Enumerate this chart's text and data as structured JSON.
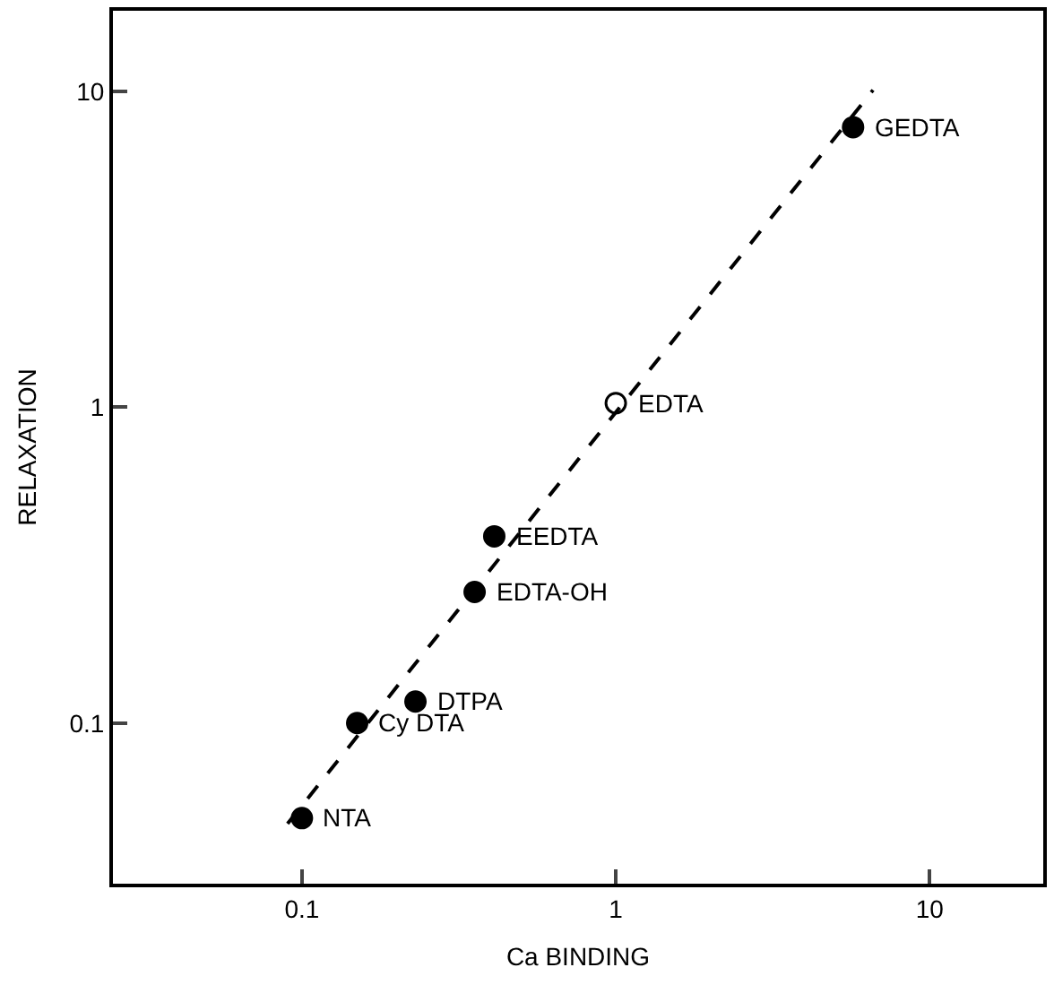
{
  "chart_data": {
    "type": "scatter",
    "xlabel": "Ca BINDING",
    "ylabel": "RELAXATION",
    "log": "xy",
    "marker": "circle",
    "xlim": [
      0.025,
      23
    ],
    "ylim": [
      0.031,
      18
    ],
    "xticks": [
      0.1,
      1,
      10
    ],
    "yticks": [
      0.1,
      1,
      10
    ],
    "series": [
      {
        "color": "#000000",
        "x": [
          0.1,
          0.15,
          0.23,
          0.355,
          0.41,
          5.7
        ],
        "values": [
          0.05,
          0.1,
          0.117,
          0.26,
          0.39,
          7.7
        ]
      },
      {
        "color": "#000000",
        "colors": [
          "#ffffff"
        ],
        "x": [
          1.0
        ],
        "values": [
          1.03
        ]
      },
      {
        "type": "line",
        "color": "#000000",
        "line_style": "dashed",
        "marker": "none",
        "x": [
          0.09,
          6.6
        ],
        "values": [
          0.048,
          10.1
        ]
      }
    ],
    "annotations": [
      {
        "text": "NTA",
        "x": 0.1,
        "y": 0.05
      },
      {
        "text": "Cy DTA",
        "x": 0.15,
        "y": 0.1
      },
      {
        "text": "DTPA",
        "x": 0.23,
        "y": 0.117
      },
      {
        "text": "EDTA-OH",
        "x": 0.355,
        "y": 0.26
      },
      {
        "text": "EEDTA",
        "x": 0.41,
        "y": 0.39
      },
      {
        "text": "EDTA",
        "x": 1.0,
        "y": 1.03
      },
      {
        "text": "GEDTA",
        "x": 5.7,
        "y": 7.7
      }
    ]
  }
}
